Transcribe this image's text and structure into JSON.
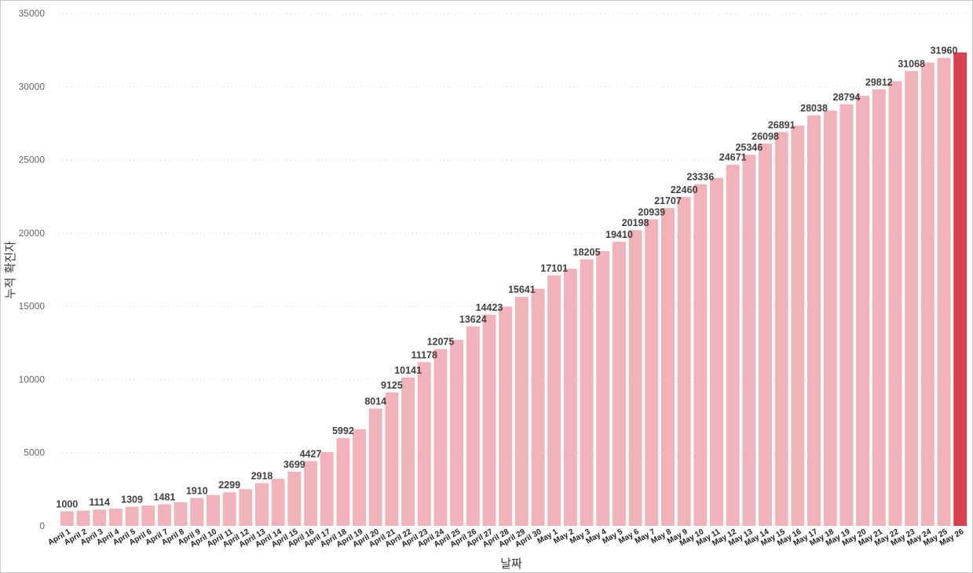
{
  "chart_data": {
    "type": "bar",
    "xlabel": "날짜",
    "ylabel": "누적 확진자",
    "ylim": [
      0,
      35000
    ],
    "yticks": [
      0,
      5000,
      10000,
      15000,
      20000,
      25000,
      30000,
      35000
    ],
    "grid": "horizontal dotted",
    "colors": {
      "bar": "#f0b3b9",
      "highlight": "#d9414f"
    },
    "categories": [
      "April 1",
      "April 2",
      "April 3",
      "April 4",
      "April 5",
      "April 6",
      "April 7",
      "April 8",
      "April 9",
      "April 10",
      "April 11",
      "April 12",
      "April 13",
      "April 14",
      "April 15",
      "April 16",
      "April 17",
      "April 18",
      "April 19",
      "April 20",
      "April 21",
      "April 22",
      "April 23",
      "April 24",
      "April 25",
      "April 26",
      "April 27",
      "April 28",
      "April 29",
      "April 30",
      "May 1",
      "May 2",
      "May 3",
      "May 4",
      "May 5",
      "May 6",
      "May 7",
      "May 8",
      "May 9",
      "May 10",
      "May 11",
      "May 12",
      "May 13",
      "May 14",
      "May 15",
      "May 16",
      "May 17",
      "May 18",
      "May 19",
      "May 20",
      "May 21",
      "May 22",
      "May 23",
      "May 24",
      "May 25",
      "May 26"
    ],
    "values": [
      1000,
      1040,
      1114,
      1180,
      1309,
      1390,
      1481,
      1620,
      1910,
      2110,
      2299,
      2510,
      2918,
      3210,
      3699,
      4427,
      5040,
      5992,
      6600,
      8014,
      9125,
      10141,
      11178,
      12075,
      12700,
      13624,
      14423,
      14970,
      15641,
      16200,
      17101,
      17560,
      18205,
      18760,
      19410,
      20198,
      20939,
      21707,
      22460,
      23336,
      23770,
      24671,
      25346,
      26098,
      26891,
      27330,
      28038,
      28360,
      28794,
      29370,
      29812,
      30370,
      31068,
      31640,
      31960,
      32330
    ],
    "labels": [
      {
        "index": 0,
        "text": "1000"
      },
      {
        "index": 2,
        "text": "1114"
      },
      {
        "index": 4,
        "text": "1309"
      },
      {
        "index": 6,
        "text": "1481"
      },
      {
        "index": 8,
        "text": "1910"
      },
      {
        "index": 10,
        "text": "2299"
      },
      {
        "index": 12,
        "text": "2918"
      },
      {
        "index": 14,
        "text": "3699"
      },
      {
        "index": 15,
        "text": "4427"
      },
      {
        "index": 17,
        "text": "5992"
      },
      {
        "index": 19,
        "text": "8014"
      },
      {
        "index": 20,
        "text": "9125"
      },
      {
        "index": 21,
        "text": "10141"
      },
      {
        "index": 22,
        "text": "11178"
      },
      {
        "index": 23,
        "text": "12075"
      },
      {
        "index": 25,
        "text": "13624"
      },
      {
        "index": 26,
        "text": "14423"
      },
      {
        "index": 28,
        "text": "15641"
      },
      {
        "index": 30,
        "text": "17101"
      },
      {
        "index": 32,
        "text": "18205"
      },
      {
        "index": 34,
        "text": "19410"
      },
      {
        "index": 35,
        "text": "20198"
      },
      {
        "index": 36,
        "text": "20939"
      },
      {
        "index": 37,
        "text": "21707"
      },
      {
        "index": 38,
        "text": "22460"
      },
      {
        "index": 39,
        "text": "23336"
      },
      {
        "index": 41,
        "text": "24671"
      },
      {
        "index": 42,
        "text": "25346"
      },
      {
        "index": 43,
        "text": "26098"
      },
      {
        "index": 44,
        "text": "26891"
      },
      {
        "index": 46,
        "text": "28038"
      },
      {
        "index": 48,
        "text": "28794"
      },
      {
        "index": 50,
        "text": "29812"
      },
      {
        "index": 52,
        "text": "31068"
      },
      {
        "index": 54,
        "text": "31960"
      }
    ]
  }
}
